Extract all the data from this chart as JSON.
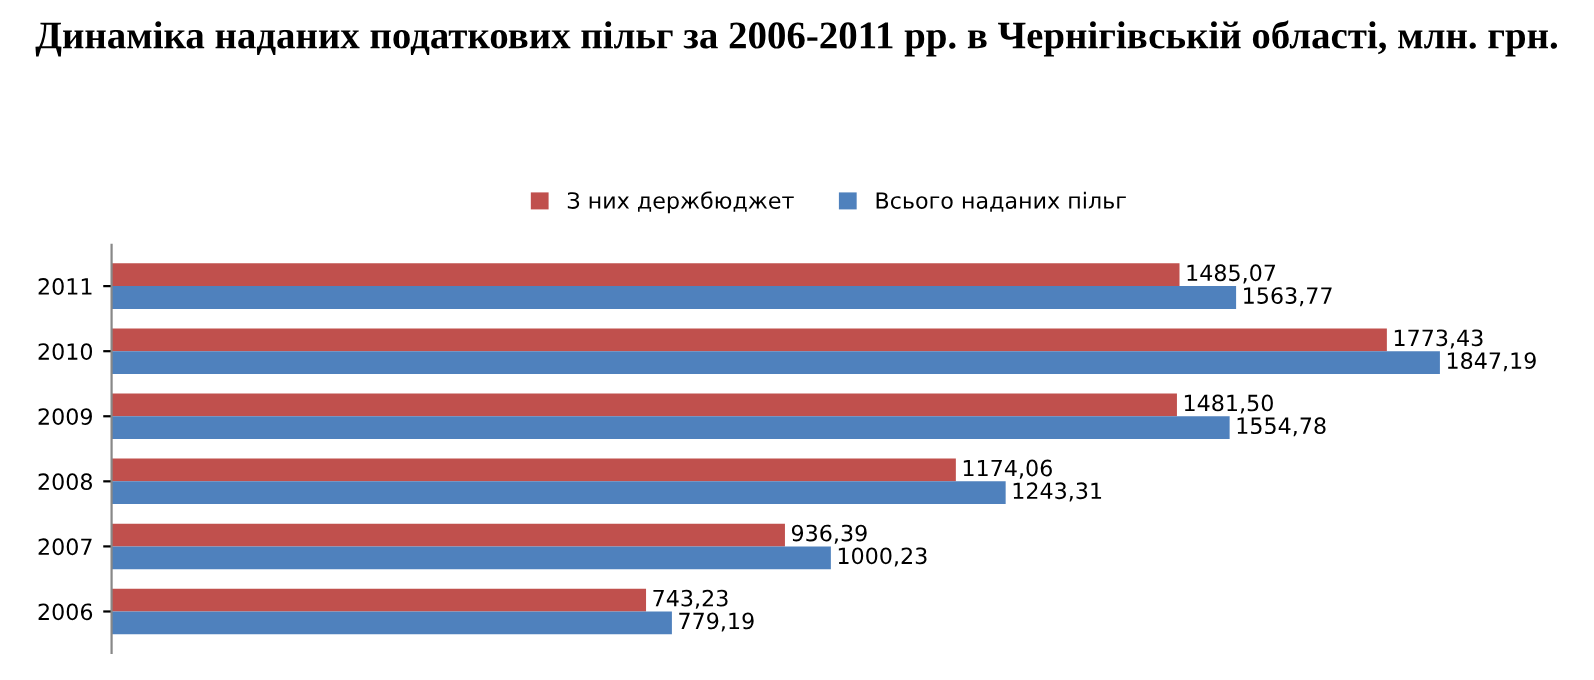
{
  "chart_data": {
    "type": "bar",
    "orientation": "horizontal",
    "title": "Динаміка наданих податкових пільг за 2006-2011 рр. в Чернігівській області, млн. грн.",
    "categories": [
      "2011",
      "2010",
      "2009",
      "2008",
      "2007",
      "2006"
    ],
    "series": [
      {
        "name": "З них держбюджет",
        "color": "#c0504d",
        "values": [
          1485.07,
          1773.43,
          1481.5,
          1174.06,
          936.39,
          743.23
        ],
        "value_labels": [
          "1485,07",
          "1773,43",
          "1481,50",
          "1174,06",
          "936,39",
          "743,23"
        ]
      },
      {
        "name": "Всього наданих пільг",
        "color": "#4f81bd",
        "values": [
          1563.77,
          1847.19,
          1554.78,
          1243.31,
          1000.23,
          779.19
        ],
        "value_labels": [
          "1563,77",
          "1847,19",
          "1554,78",
          "1243,31",
          "1000,23",
          "779,19"
        ]
      }
    ],
    "legend": "top",
    "grid": false,
    "tick_labels": "y"
  }
}
